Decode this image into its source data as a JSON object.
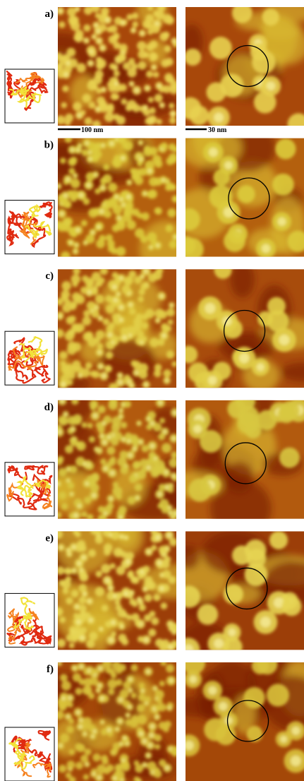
{
  "panels": [
    {
      "label": "a)",
      "left_scale_bar": "100 nm",
      "right_scale_bar": "30 nm"
    },
    {
      "label": "b)"
    },
    {
      "label": "c)"
    },
    {
      "label": "d)"
    },
    {
      "label": "e)"
    },
    {
      "label": "f)"
    }
  ]
}
